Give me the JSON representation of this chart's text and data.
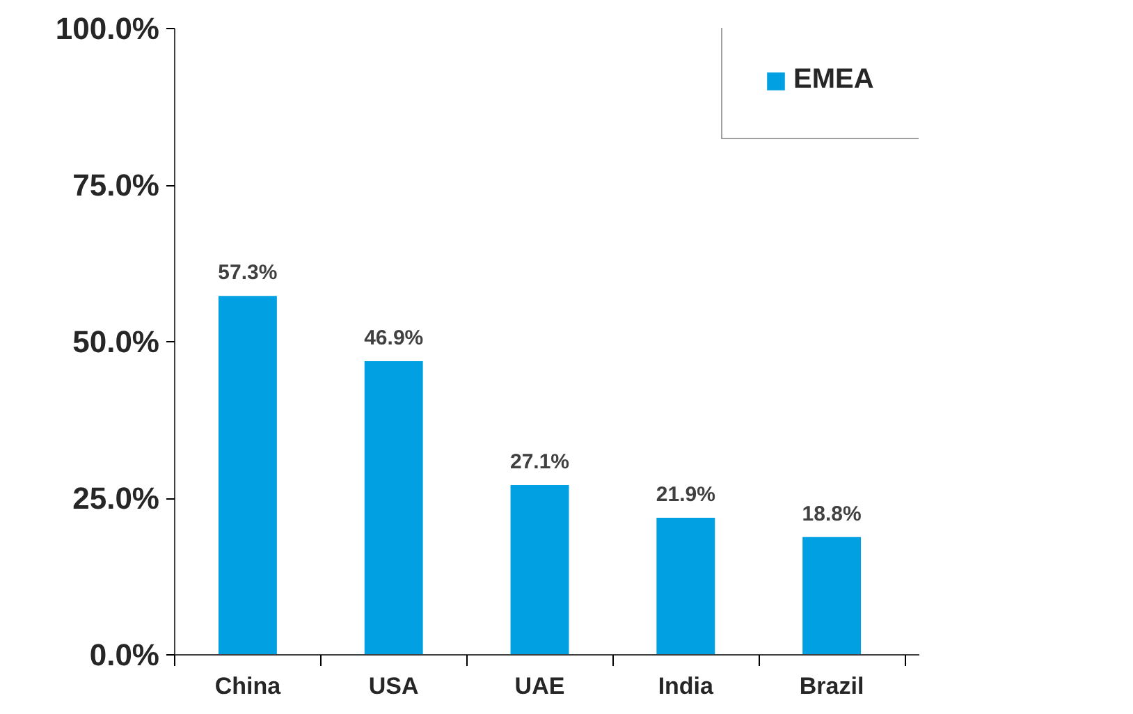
{
  "chart_data": {
    "type": "bar",
    "categories": [
      "China",
      "USA",
      "UAE",
      "India",
      "Brazil"
    ],
    "series": [
      {
        "name": "EMEA",
        "color": "#00a0e2",
        "values": [
          57.3,
          46.9,
          27.1,
          21.9,
          18.8
        ],
        "value_labels": [
          "57.3%",
          "46.9%",
          "27.1%",
          "21.9%",
          "18.8%"
        ]
      }
    ],
    "ylim": [
      0,
      100
    ],
    "yticks": [
      {
        "value": 0,
        "label": "0.0%"
      },
      {
        "value": 25,
        "label": "25.0%"
      },
      {
        "value": 50,
        "label": "50.0%"
      },
      {
        "value": 75,
        "label": "75.0%"
      },
      {
        "value": 100,
        "label": "100.0%"
      }
    ],
    "grid": false,
    "legend": "top right"
  }
}
